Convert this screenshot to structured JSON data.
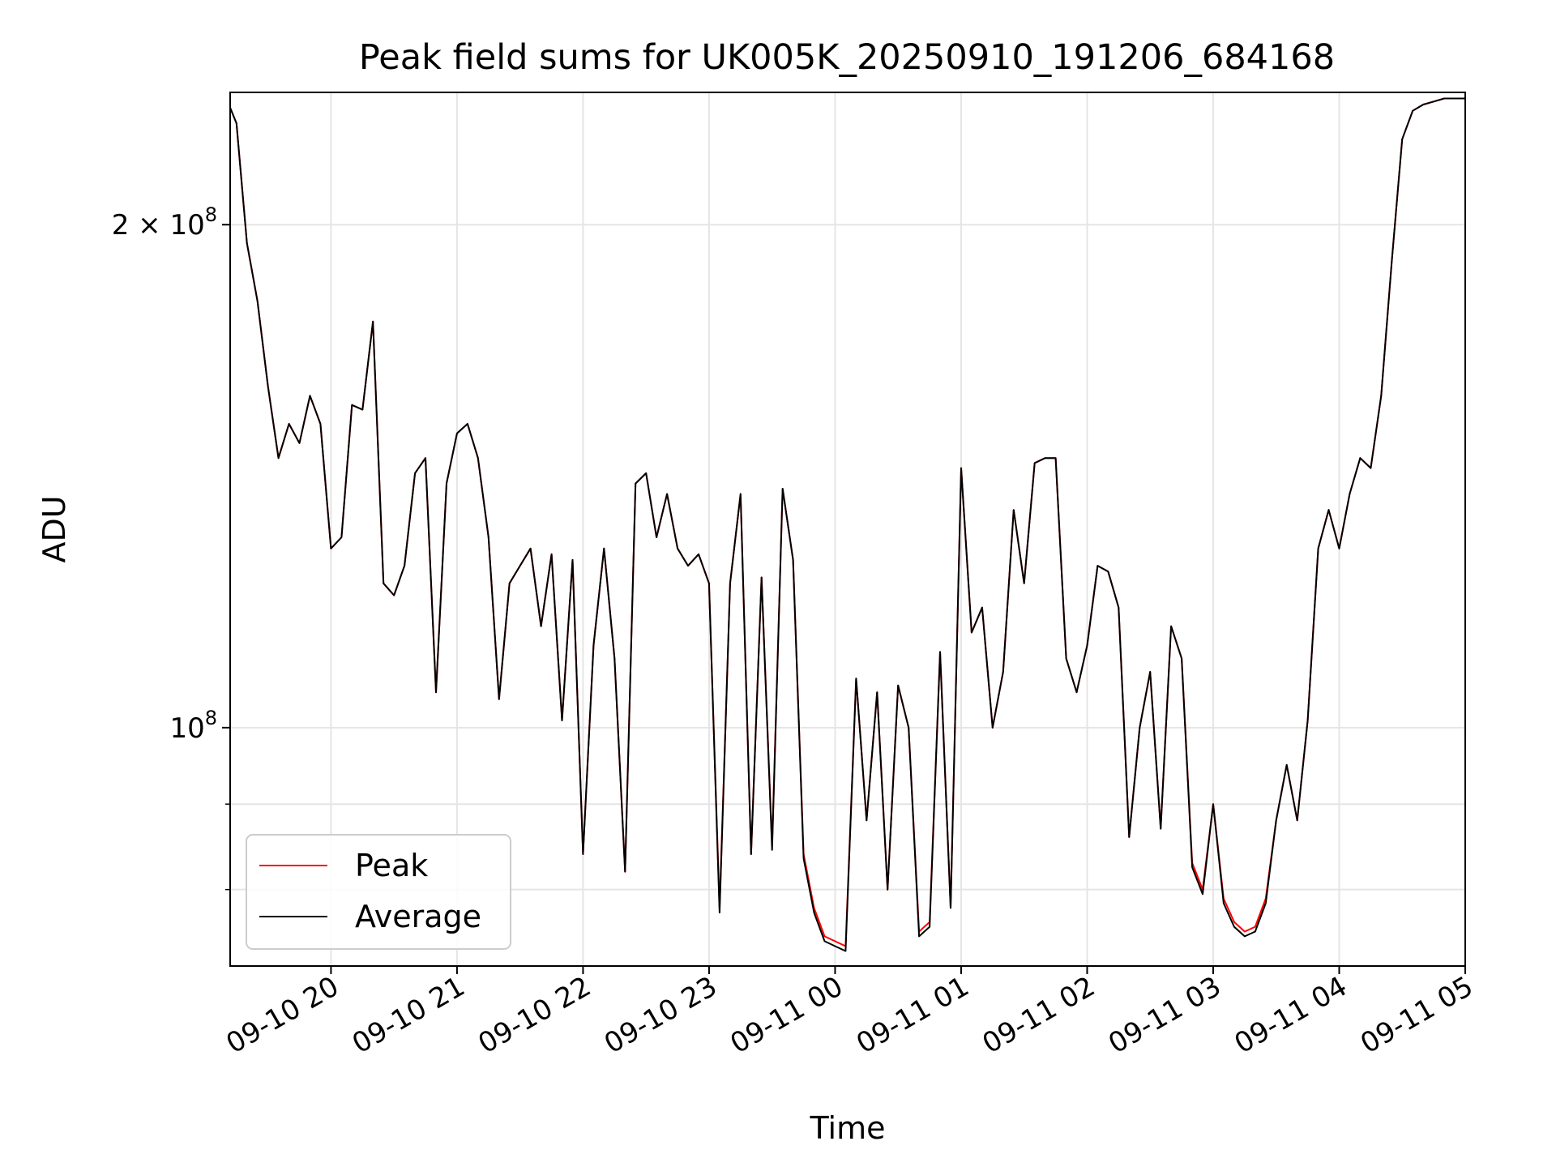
{
  "chart_data": {
    "type": "line",
    "title": "Peak field sums for UK005K_20250910_191206_684168",
    "xlabel": "Time",
    "ylabel": "ADU",
    "yscale": "log",
    "grid": true,
    "legend_position": "lower-left",
    "xlim": [
      "2025-09-10 19:12",
      "2025-09-11 05:00"
    ],
    "ylim": [
      72000000,
      240000000
    ],
    "x_ticks": [
      "09-10 20",
      "09-10 21",
      "09-10 22",
      "09-10 23",
      "09-11 00",
      "09-11 01",
      "09-11 02",
      "09-11 03",
      "09-11 04",
      "09-11 05"
    ],
    "y_ticks": [
      {
        "value": 200000000,
        "label_mantissa": "2 × 10",
        "label_exp": "8"
      },
      {
        "value": 100000000,
        "label_mantissa": "10",
        "label_exp": "8"
      }
    ],
    "y_minor_ticks": [
      80000000,
      90000000
    ],
    "x_time_format": "MM-DD HH",
    "series": [
      {
        "name": "Peak",
        "color": "#ff0000",
        "x": [
          "19:12",
          "19:15",
          "19:20",
          "19:25",
          "19:30",
          "19:35",
          "19:40",
          "19:45",
          "19:50",
          "19:55",
          "20:00",
          "20:05",
          "20:10",
          "20:15",
          "20:20",
          "20:25",
          "20:30",
          "20:35",
          "20:40",
          "20:45",
          "20:50",
          "20:55",
          "21:00",
          "21:05",
          "21:10",
          "21:15",
          "21:20",
          "21:25",
          "21:30",
          "21:35",
          "21:40",
          "21:45",
          "21:50",
          "21:55",
          "22:00",
          "22:05",
          "22:10",
          "22:15",
          "22:20",
          "22:25",
          "22:30",
          "22:35",
          "22:40",
          "22:45",
          "22:50",
          "22:55",
          "23:00",
          "23:05",
          "23:10",
          "23:15",
          "23:20",
          "23:25",
          "23:30",
          "23:35",
          "23:40",
          "23:45",
          "23:50",
          "23:55",
          "00:00",
          "00:05",
          "00:10",
          "00:15",
          "00:20",
          "00:25",
          "00:30",
          "00:35",
          "00:40",
          "00:45",
          "00:50",
          "00:55",
          "01:00",
          "01:05",
          "01:10",
          "01:15",
          "01:20",
          "01:25",
          "01:30",
          "01:35",
          "01:40",
          "01:45",
          "01:50",
          "01:55",
          "02:00",
          "02:05",
          "02:10",
          "02:15",
          "02:20",
          "02:25",
          "02:30",
          "02:35",
          "02:40",
          "02:45",
          "02:50",
          "02:55",
          "03:00",
          "03:05",
          "03:10",
          "03:15",
          "03:20",
          "03:25",
          "03:30",
          "03:35",
          "03:40",
          "03:45",
          "03:50",
          "03:55",
          "04:00",
          "04:05",
          "04:10",
          "04:15",
          "04:20",
          "04:25",
          "04:30",
          "04:35",
          "04:40",
          "04:45",
          "04:50",
          "04:55",
          "05:00"
        ],
        "values": [
          235000000,
          230000000,
          195000000,
          180000000,
          160000000,
          145000000,
          152000000,
          148000000,
          158000000,
          152000000,
          128000000,
          130000000,
          156000000,
          155000000,
          175000000,
          122000000,
          120000000,
          125000000,
          142000000,
          145000000,
          105000000,
          140000000,
          150000000,
          152000000,
          145000000,
          130000000,
          104000000,
          122000000,
          125000000,
          128000000,
          115000000,
          127000000,
          101000000,
          126000000,
          84000000,
          112000000,
          128000000,
          110000000,
          82000000,
          140000000,
          142000000,
          130000000,
          138000000,
          128000000,
          125000000,
          127000000,
          122000000,
          78000000,
          122000000,
          138000000,
          84000000,
          123000000,
          85000000,
          139000000,
          126000000,
          84000000,
          78000000,
          75000000,
          74500000,
          74000000,
          107000000,
          88000000,
          105000000,
          80000000,
          106000000,
          100000000,
          75500000,
          76500000,
          111000000,
          78000000,
          143000000,
          114000000,
          118000000,
          100000000,
          108000000,
          135000000,
          122000000,
          144000000,
          145000000,
          145000000,
          110000000,
          105000000,
          112000000,
          125000000,
          124000000,
          118000000,
          86000000,
          100000000,
          108000000,
          87000000,
          115000000,
          110000000,
          83000000,
          80000000,
          90000000,
          79000000,
          76500000,
          75500000,
          76000000,
          79000000,
          88000000,
          95000000,
          88000000,
          101000000,
          128000000,
          135000000,
          128000000,
          138000000,
          145000000,
          143000000,
          158000000,
          190000000,
          225000000,
          234000000,
          236000000,
          237000000,
          238000000,
          238000000,
          238000000
        ]
      },
      {
        "name": "Average",
        "color": "#000000",
        "x": [
          "19:12",
          "19:15",
          "19:20",
          "19:25",
          "19:30",
          "19:35",
          "19:40",
          "19:45",
          "19:50",
          "19:55",
          "20:00",
          "20:05",
          "20:10",
          "20:15",
          "20:20",
          "20:25",
          "20:30",
          "20:35",
          "20:40",
          "20:45",
          "20:50",
          "20:55",
          "21:00",
          "21:05",
          "21:10",
          "21:15",
          "21:20",
          "21:25",
          "21:30",
          "21:35",
          "21:40",
          "21:45",
          "21:50",
          "21:55",
          "22:00",
          "22:05",
          "22:10",
          "22:15",
          "22:20",
          "22:25",
          "22:30",
          "22:35",
          "22:40",
          "22:45",
          "22:50",
          "22:55",
          "23:00",
          "23:05",
          "23:10",
          "23:15",
          "23:20",
          "23:25",
          "23:30",
          "23:35",
          "23:40",
          "23:45",
          "23:50",
          "23:55",
          "00:00",
          "00:05",
          "00:10",
          "00:15",
          "00:20",
          "00:25",
          "00:30",
          "00:35",
          "00:40",
          "00:45",
          "00:50",
          "00:55",
          "01:00",
          "01:05",
          "01:10",
          "01:15",
          "01:20",
          "01:25",
          "01:30",
          "01:35",
          "01:40",
          "01:45",
          "01:50",
          "01:55",
          "02:00",
          "02:05",
          "02:10",
          "02:15",
          "02:20",
          "02:25",
          "02:30",
          "02:35",
          "02:40",
          "02:45",
          "02:50",
          "02:55",
          "03:00",
          "03:05",
          "03:10",
          "03:15",
          "03:20",
          "03:25",
          "03:30",
          "03:35",
          "03:40",
          "03:45",
          "03:50",
          "03:55",
          "04:00",
          "04:05",
          "04:10",
          "04:15",
          "04:20",
          "04:25",
          "04:30",
          "04:35",
          "04:40",
          "04:45",
          "04:50",
          "04:55",
          "05:00"
        ],
        "values": [
          235000000,
          230000000,
          195000000,
          180000000,
          160000000,
          145000000,
          152000000,
          148000000,
          158000000,
          152000000,
          128000000,
          130000000,
          156000000,
          155000000,
          175000000,
          122000000,
          120000000,
          125000000,
          142000000,
          145000000,
          105000000,
          140000000,
          150000000,
          152000000,
          145000000,
          130000000,
          104000000,
          122000000,
          125000000,
          128000000,
          115000000,
          127000000,
          101000000,
          126000000,
          84000000,
          112000000,
          128000000,
          110000000,
          82000000,
          140000000,
          142000000,
          130000000,
          138000000,
          128000000,
          125000000,
          127000000,
          122000000,
          77500000,
          122000000,
          138000000,
          84000000,
          123000000,
          84500000,
          139000000,
          126000000,
          83500000,
          77500000,
          74500000,
          74000000,
          73500000,
          107000000,
          88000000,
          105000000,
          80000000,
          106000000,
          100000000,
          75000000,
          76000000,
          111000000,
          78000000,
          143000000,
          114000000,
          118000000,
          100000000,
          108000000,
          135000000,
          122000000,
          144000000,
          145000000,
          145000000,
          110000000,
          105000000,
          112000000,
          125000000,
          124000000,
          118000000,
          86000000,
          100000000,
          108000000,
          87000000,
          115000000,
          110000000,
          82500000,
          79500000,
          90000000,
          78500000,
          76000000,
          75000000,
          75500000,
          78500000,
          88000000,
          95000000,
          88000000,
          101000000,
          128000000,
          135000000,
          128000000,
          138000000,
          145000000,
          143000000,
          158000000,
          190000000,
          225000000,
          234000000,
          236000000,
          237000000,
          238000000,
          238000000,
          238000000
        ]
      }
    ]
  }
}
